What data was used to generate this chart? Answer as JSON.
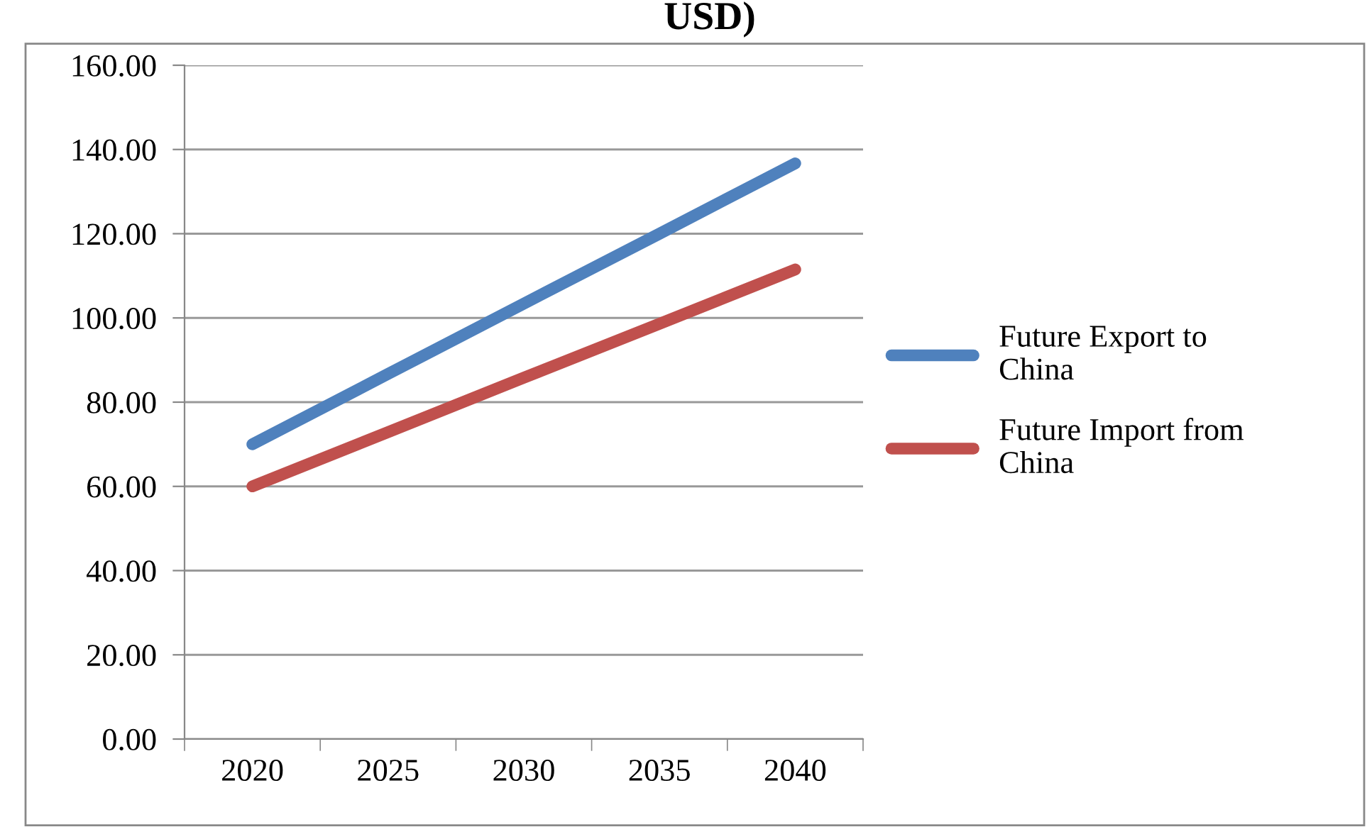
{
  "chart_data": {
    "type": "line",
    "title": "USD)",
    "categories": [
      "2020",
      "2025",
      "2030",
      "2035",
      "2040"
    ],
    "series": [
      {
        "name": "Future Export to China",
        "color": "#4f81bd",
        "values": [
          70.0,
          86.7,
          103.4,
          120.0,
          136.7
        ]
      },
      {
        "name": "Future Import from China",
        "color": "#c0504d",
        "values": [
          60.0,
          72.9,
          85.8,
          98.6,
          111.5
        ]
      }
    ],
    "ylim": [
      0,
      160
    ],
    "yticks": [
      {
        "value": 0,
        "label": "0.00"
      },
      {
        "value": 20,
        "label": "20.00"
      },
      {
        "value": 40,
        "label": "40.00"
      },
      {
        "value": 60,
        "label": "60.00"
      },
      {
        "value": 80,
        "label": "80.00"
      },
      {
        "value": 100,
        "label": "100.00"
      },
      {
        "value": 120,
        "label": "120.00"
      },
      {
        "value": 140,
        "label": "140.00"
      },
      {
        "value": 160,
        "label": "160.00"
      }
    ],
    "grid": "y",
    "legend": "right",
    "marker": "none",
    "line_style": "solid"
  }
}
